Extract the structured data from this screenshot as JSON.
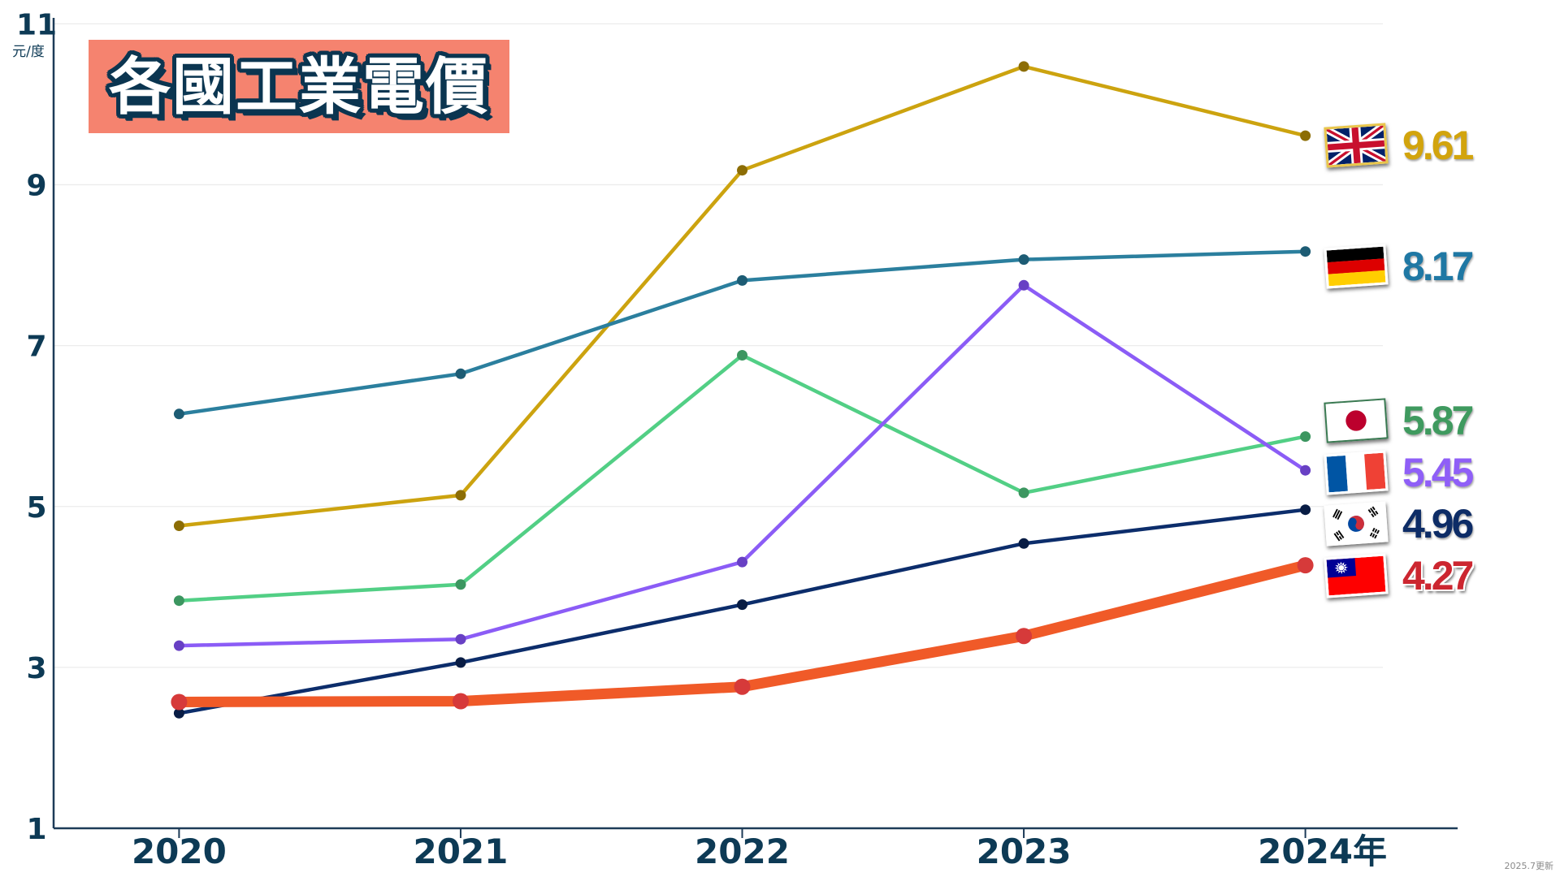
{
  "footnote": "2025.7更新",
  "colors": {
    "title_box": "#f5836f",
    "title_text": "#ffffff",
    "title_outline": "#0b3550",
    "axis": "#1d3b58",
    "grid": "#ececec"
  },
  "chart_data": {
    "type": "line",
    "title": "各國工業電價",
    "ylabel": "元/度",
    "xlabel": "",
    "x": [
      "2020",
      "2021",
      "2022",
      "2023",
      "2024年"
    ],
    "ylim": [
      1,
      11
    ],
    "yticks": [
      1,
      3,
      5,
      7,
      9,
      11
    ],
    "grid": true,
    "legend": "right",
    "series": [
      {
        "flag_icon": "uk-flag-icon",
        "color": "#cca30f",
        "point_color": "#8c6d05",
        "label_color": "#d2a40d",
        "values": [
          4.76,
          5.14,
          9.18,
          10.47,
          9.61
        ],
        "end_label": "9.61"
      },
      {
        "flag_icon": "germany-flag-icon",
        "color": "#2b7f9e",
        "point_color": "#1d5c74",
        "label_color": "#1f78a4",
        "values": [
          6.15,
          6.65,
          7.81,
          8.07,
          8.17
        ],
        "end_label": "8.17"
      },
      {
        "flag_icon": "japan-flag-icon",
        "color": "#52cf85",
        "point_color": "#3c9660",
        "label_color": "#3f9a5f",
        "values": [
          3.83,
          4.03,
          6.88,
          5.17,
          5.87
        ],
        "end_label": "5.87"
      },
      {
        "flag_icon": "france-flag-icon",
        "color": "#8b5cf6",
        "point_color": "#6840c4",
        "label_color": "#8f5ff7",
        "values": [
          3.27,
          3.35,
          4.31,
          7.75,
          5.45
        ],
        "end_label": "5.45"
      },
      {
        "flag_icon": "south-korea-flag-icon",
        "color": "#0c2d6b",
        "point_color": "#081c44",
        "label_color": "#0d2c66",
        "values": [
          2.43,
          3.06,
          3.78,
          4.54,
          4.96
        ],
        "end_label": "4.96"
      },
      {
        "flag_icon": "taiwan-flag-icon",
        "color": "#f05a28",
        "point_color": "#d63a3a",
        "label_color": "#cc2630",
        "values": [
          2.57,
          2.58,
          2.76,
          3.39,
          4.27
        ],
        "end_label": "4.27"
      }
    ]
  }
}
